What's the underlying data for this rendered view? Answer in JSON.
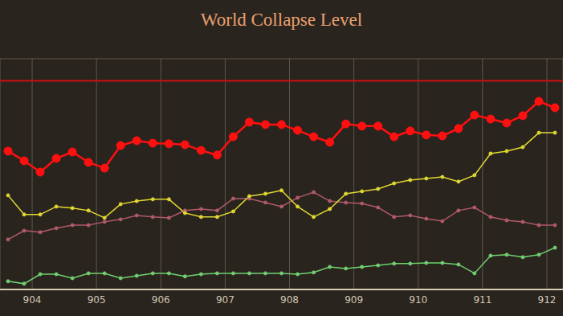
{
  "chart_data": {
    "type": "line",
    "title": "World Collapse Level",
    "x": [
      903.625,
      903.875,
      904.125,
      904.375,
      904.625,
      904.875,
      905.125,
      905.375,
      905.625,
      905.875,
      906.125,
      906.375,
      906.625,
      906.875,
      907.125,
      907.375,
      907.625,
      907.875,
      908.125,
      908.375,
      908.625,
      908.875,
      909.125,
      909.375,
      909.625,
      909.875,
      910.125,
      910.375,
      910.625,
      910.875,
      911.125,
      911.375,
      911.625,
      911.875,
      912.125
    ],
    "series": [
      {
        "color": "#ff1010",
        "marker": "circle",
        "values": [
          5.82,
          5.38,
          4.87,
          5.49,
          5.78,
          5.31,
          5.05,
          6.07,
          6.29,
          6.18,
          6.15,
          6.11,
          5.85,
          5.64,
          6.47,
          7.13,
          7.02,
          7.02,
          6.76,
          6.47,
          6.22,
          7.05,
          6.95,
          6.95,
          6.47,
          6.73,
          6.55,
          6.51,
          6.84,
          7.45,
          7.27,
          7.09,
          7.42,
          8.07,
          7.78
        ]
      },
      {
        "color": "#e0d830",
        "marker": "circle",
        "values": [
          3.82,
          2.95,
          2.95,
          3.31,
          3.24,
          3.13,
          2.8,
          3.42,
          3.56,
          3.64,
          3.64,
          3.02,
          2.84,
          2.84,
          3.09,
          3.78,
          3.89,
          4.04,
          3.31,
          2.84,
          3.2,
          3.89,
          4.0,
          4.11,
          4.36,
          4.51,
          4.58,
          4.65,
          4.44,
          4.73,
          5.71,
          5.82,
          6.0,
          6.65,
          6.65
        ]
      },
      {
        "color": "#b05a6a",
        "marker": "circle",
        "values": [
          1.82,
          2.22,
          2.15,
          2.33,
          2.47,
          2.47,
          2.62,
          2.73,
          2.91,
          2.84,
          2.8,
          3.13,
          3.2,
          3.13,
          3.67,
          3.67,
          3.49,
          3.31,
          3.71,
          3.96,
          3.56,
          3.49,
          3.45,
          3.27,
          2.84,
          2.91,
          2.76,
          2.65,
          3.13,
          3.27,
          2.84,
          2.69,
          2.62,
          2.47,
          2.47
        ]
      },
      {
        "color": "#70d070",
        "marker": "circle",
        "values": [
          -0.07,
          -0.18,
          0.25,
          0.25,
          0.07,
          0.29,
          0.29,
          0.07,
          0.18,
          0.29,
          0.29,
          0.15,
          0.25,
          0.29,
          0.29,
          0.29,
          0.29,
          0.29,
          0.25,
          0.33,
          0.58,
          0.51,
          0.58,
          0.65,
          0.73,
          0.73,
          0.76,
          0.76,
          0.69,
          0.29,
          1.09,
          1.13,
          1.02,
          1.13,
          1.45
        ]
      }
    ],
    "threshold": {
      "value": 9,
      "color": "#c81010"
    },
    "xlim": [
      903.5,
      912.25
    ],
    "xticks": [
      904,
      905,
      906,
      907,
      908,
      909,
      910,
      911,
      912
    ],
    "ylim": [
      -0.44,
      10
    ],
    "yticks": [
      0,
      1,
      2,
      3,
      4,
      5,
      6,
      7,
      8,
      9,
      10
    ],
    "grid": true,
    "tick_labels": "x"
  }
}
